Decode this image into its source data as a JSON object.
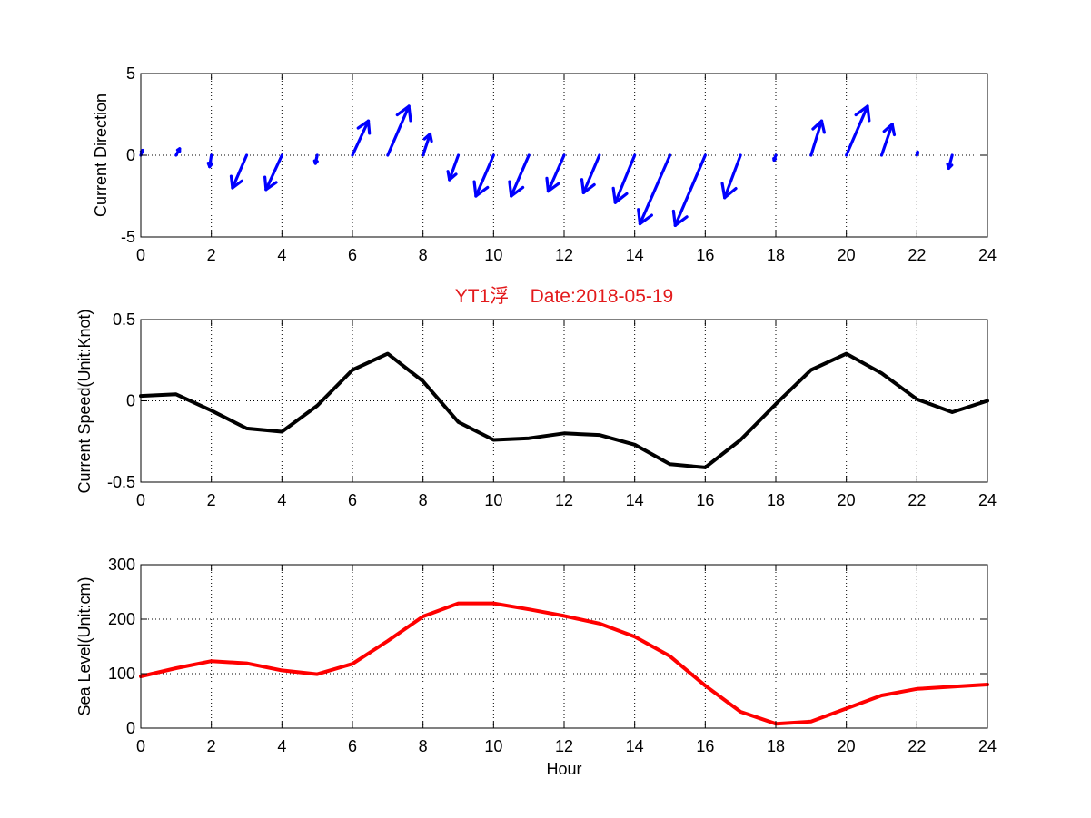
{
  "chart_data": [
    {
      "type": "quiver",
      "title": "",
      "xlabel": "",
      "ylabel": "Current Direction",
      "xlim": [
        0,
        24
      ],
      "ylim": [
        -5,
        5
      ],
      "xticks": [
        0,
        2,
        4,
        6,
        8,
        10,
        12,
        14,
        16,
        18,
        20,
        22,
        24
      ],
      "yticks": [
        -5,
        0,
        5
      ],
      "grid": true,
      "color": "#0000ff",
      "x": [
        0,
        1,
        2,
        3,
        4,
        5,
        6,
        7,
        8,
        9,
        10,
        11,
        12,
        13,
        14,
        15,
        16,
        17,
        18,
        19,
        20,
        21,
        22,
        23
      ],
      "u": [
        0.05,
        0.1,
        -0.05,
        -0.4,
        -0.45,
        -0.05,
        0.45,
        0.6,
        0.2,
        -0.25,
        -0.5,
        -0.5,
        -0.45,
        -0.45,
        -0.55,
        -0.85,
        -0.85,
        -0.45,
        -0.05,
        0.3,
        0.6,
        0.3,
        0.02,
        -0.1
      ],
      "v": [
        0.3,
        0.4,
        -0.7,
        -2.0,
        -2.1,
        -0.5,
        2.1,
        3.0,
        1.3,
        -1.5,
        -2.5,
        -2.5,
        -2.2,
        -2.3,
        -2.9,
        -4.2,
        -4.3,
        -2.6,
        -0.3,
        2.1,
        3.0,
        1.9,
        0.2,
        -0.8
      ]
    },
    {
      "type": "line",
      "title": "YT1浮    Date:2018-05-19",
      "xlabel": "",
      "ylabel": "Current Speed(Unit:Knot)",
      "xlim": [
        0,
        24
      ],
      "ylim": [
        -0.5,
        0.5
      ],
      "xticks": [
        0,
        2,
        4,
        6,
        8,
        10,
        12,
        14,
        16,
        18,
        20,
        22,
        24
      ],
      "yticks": [
        -0.5,
        0,
        0.5
      ],
      "grid": true,
      "color": "#000000",
      "x": [
        0,
        1,
        2,
        3,
        4,
        5,
        6,
        7,
        8,
        9,
        10,
        11,
        12,
        13,
        14,
        15,
        16,
        17,
        18,
        19,
        20,
        21,
        22,
        23,
        24
      ],
      "y": [
        0.03,
        0.04,
        -0.06,
        -0.17,
        -0.19,
        -0.03,
        0.19,
        0.29,
        0.12,
        -0.13,
        -0.24,
        -0.23,
        -0.2,
        -0.21,
        -0.27,
        -0.39,
        -0.41,
        -0.24,
        -0.02,
        0.19,
        0.29,
        0.17,
        0.01,
        -0.07,
        0.0
      ],
      "title_color": "#e31a1c"
    },
    {
      "type": "line",
      "title": "",
      "xlabel": "Hour",
      "ylabel": "Sea Level(Unit:cm)",
      "xlim": [
        0,
        24
      ],
      "ylim": [
        0,
        300
      ],
      "xticks": [
        0,
        2,
        4,
        6,
        8,
        10,
        12,
        14,
        16,
        18,
        20,
        22,
        24
      ],
      "yticks": [
        0,
        100,
        200,
        300
      ],
      "grid": true,
      "color": "#ff0000",
      "x": [
        0,
        1,
        2,
        3,
        4,
        5,
        6,
        7,
        8,
        9,
        10,
        11,
        12,
        13,
        14,
        15,
        16,
        17,
        18,
        19,
        20,
        21,
        22,
        23,
        24
      ],
      "y": [
        95,
        110,
        123,
        119,
        106,
        99,
        118,
        160,
        205,
        229,
        229,
        218,
        206,
        192,
        168,
        132,
        78,
        30,
        8,
        12,
        36,
        60,
        72,
        76,
        80
      ]
    }
  ]
}
